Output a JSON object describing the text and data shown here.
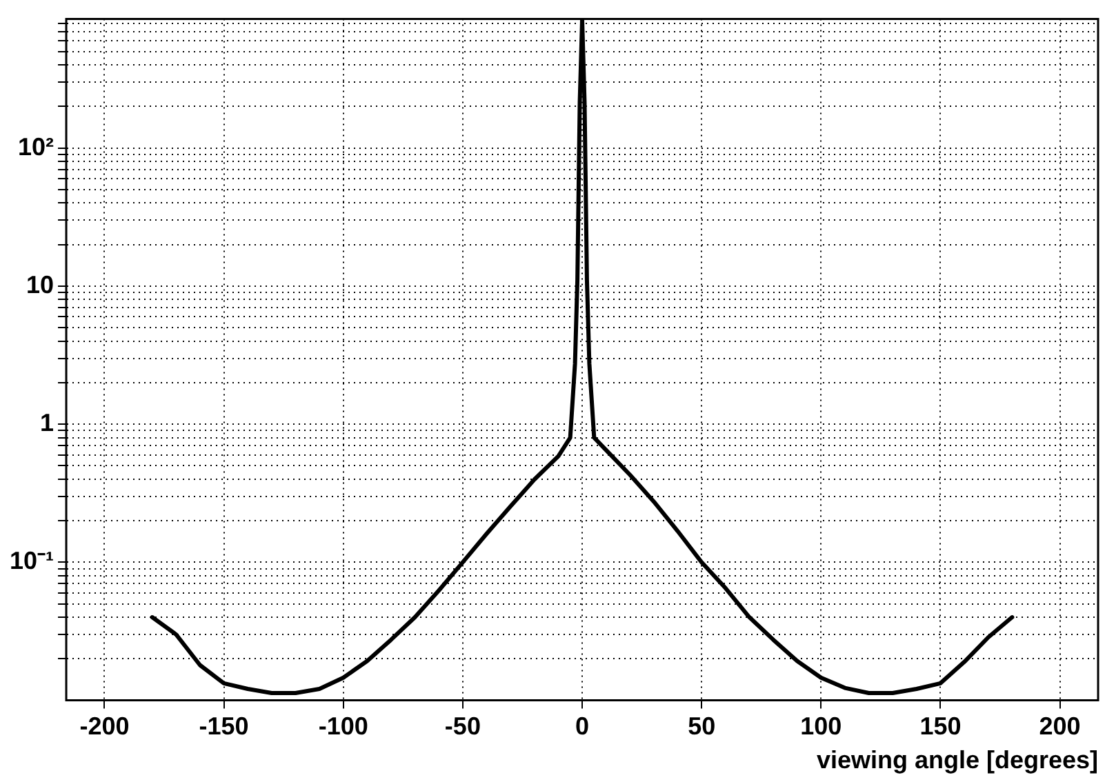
{
  "chart_data": {
    "type": "line",
    "xlabel": "viewing angle [degrees]",
    "x": [
      -180,
      -170,
      -160,
      -150,
      -140,
      -130,
      -120,
      -110,
      -100,
      -90,
      -80,
      -70,
      -60,
      -50,
      -40,
      -30,
      -20,
      -10,
      -5,
      -3,
      -2,
      -1,
      0,
      1,
      2,
      3,
      5,
      10,
      20,
      30,
      40,
      50,
      60,
      70,
      80,
      90,
      100,
      110,
      120,
      130,
      140,
      150,
      160,
      170,
      180
    ],
    "series": [
      {
        "color": "#000000",
        "values": [
          0.04,
          0.03,
          0.018,
          0.0133,
          0.0121,
          0.0113,
          0.0113,
          0.0121,
          0.0146,
          0.0193,
          0.0275,
          0.04,
          0.0625,
          0.1,
          0.161,
          0.254,
          0.398,
          0.586,
          0.8,
          2.75,
          11,
          215,
          850,
          215,
          11,
          2.75,
          0.8,
          0.65,
          0.43,
          0.275,
          0.168,
          0.1,
          0.065,
          0.04,
          0.0275,
          0.0193,
          0.0146,
          0.0123,
          0.0113,
          0.0113,
          0.0121,
          0.0133,
          0.019,
          0.0286,
          0.04
        ]
      }
    ],
    "xlim": [
      -216,
      216
    ],
    "xticks": [
      -200,
      -150,
      -100,
      -50,
      0,
      50,
      100,
      150,
      200
    ],
    "ylim": [
      0.01,
      860
    ],
    "log": "y",
    "yticks": [
      {
        "value": 0.02,
        "label": null
      },
      {
        "value": 0.03,
        "label": null
      },
      {
        "value": 0.04,
        "label": null
      },
      {
        "value": 0.05,
        "label": null
      },
      {
        "value": 0.06,
        "label": null
      },
      {
        "value": 0.07,
        "label": null
      },
      {
        "value": 0.08,
        "label": null
      },
      {
        "value": 0.09,
        "label": null
      },
      {
        "value": 0.1,
        "label": "10⁻¹"
      },
      {
        "value": 0.2,
        "label": null
      },
      {
        "value": 0.3,
        "label": null
      },
      {
        "value": 0.4,
        "label": null
      },
      {
        "value": 0.5,
        "label": null
      },
      {
        "value": 0.6,
        "label": null
      },
      {
        "value": 0.7,
        "label": null
      },
      {
        "value": 0.8,
        "label": null
      },
      {
        "value": 0.9,
        "label": null
      },
      1,
      {
        "value": 2,
        "label": null
      },
      {
        "value": 3,
        "label": null
      },
      {
        "value": 4,
        "label": null
      },
      {
        "value": 5,
        "label": null
      },
      {
        "value": 6,
        "label": null
      },
      {
        "value": 7,
        "label": null
      },
      {
        "value": 8,
        "label": null
      },
      {
        "value": 9,
        "label": null
      },
      10,
      {
        "value": 20,
        "label": null
      },
      {
        "value": 30,
        "label": null
      },
      {
        "value": 40,
        "label": null
      },
      {
        "value": 50,
        "label": null
      },
      {
        "value": 60,
        "label": null
      },
      {
        "value": 70,
        "label": null
      },
      {
        "value": 80,
        "label": null
      },
      {
        "value": 90,
        "label": null
      },
      {
        "value": 100,
        "label": "10²"
      },
      {
        "value": 200,
        "label": null
      },
      {
        "value": 300,
        "label": null
      },
      {
        "value": 400,
        "label": null
      },
      {
        "value": 500,
        "label": null
      },
      {
        "value": 600,
        "label": null
      },
      {
        "value": 700,
        "label": null
      },
      {
        "value": 800,
        "label": null
      }
    ],
    "grid": true,
    "legend": false,
    "marker": "none",
    "line_style": "solid"
  }
}
